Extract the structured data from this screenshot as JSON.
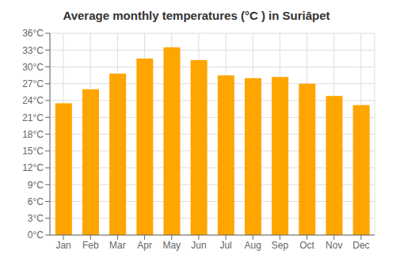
{
  "chart_data": {
    "type": "bar",
    "title": "Average monthly temperatures (°C ) in Suriāpet",
    "categories": [
      "Jan",
      "Feb",
      "Mar",
      "Apr",
      "May",
      "Jun",
      "Jul",
      "Aug",
      "Sep",
      "Oct",
      "Nov",
      "Dec"
    ],
    "values": [
      23.5,
      26.0,
      28.8,
      31.5,
      33.5,
      31.2,
      28.5,
      28.0,
      28.2,
      27.0,
      24.8,
      23.2
    ],
    "color": "#FFA500",
    "ylim": [
      0,
      36
    ],
    "yticks": [
      {
        "value": 0,
        "label": "0°C"
      },
      {
        "value": 3,
        "label": "3°C"
      },
      {
        "value": 6,
        "label": "6°C"
      },
      {
        "value": 9,
        "label": "9°C"
      },
      {
        "value": 12,
        "label": "12°C"
      },
      {
        "value": 15,
        "label": "15°C"
      },
      {
        "value": 18,
        "label": "18°C"
      },
      {
        "value": 21,
        "label": "21°C"
      },
      {
        "value": 24,
        "label": "24°C"
      },
      {
        "value": 27,
        "label": "27°C"
      },
      {
        "value": 30,
        "label": "30°C"
      },
      {
        "value": 33,
        "label": "33°C"
      },
      {
        "value": 36,
        "label": "36°C"
      }
    ],
    "grid": true
  }
}
